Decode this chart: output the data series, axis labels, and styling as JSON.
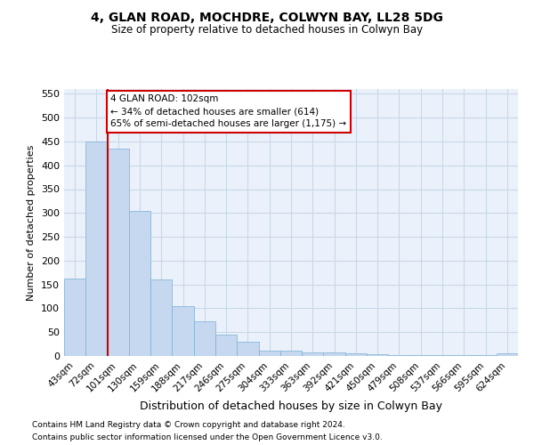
{
  "title": "4, GLAN ROAD, MOCHDRE, COLWYN BAY, LL28 5DG",
  "subtitle": "Size of property relative to detached houses in Colwyn Bay",
  "xlabel": "Distribution of detached houses by size in Colwyn Bay",
  "ylabel": "Number of detached properties",
  "footnote1": "Contains HM Land Registry data © Crown copyright and database right 2024.",
  "footnote2": "Contains public sector information licensed under the Open Government Licence v3.0.",
  "categories": [
    "43sqm",
    "72sqm",
    "101sqm",
    "130sqm",
    "159sqm",
    "188sqm",
    "217sqm",
    "246sqm",
    "275sqm",
    "304sqm",
    "333sqm",
    "363sqm",
    "392sqm",
    "421sqm",
    "450sqm",
    "479sqm",
    "508sqm",
    "537sqm",
    "566sqm",
    "595sqm",
    "624sqm"
  ],
  "values": [
    162,
    450,
    435,
    305,
    160,
    105,
    72,
    44,
    30,
    12,
    12,
    7,
    7,
    5,
    3,
    2,
    2,
    1,
    1,
    2,
    5
  ],
  "bar_color": "#c5d8f0",
  "bar_edge_color": "#7bafd4",
  "grid_color": "#c8d8e8",
  "background_color": "#eaf1fa",
  "red_line_color": "#cc0000",
  "annotation_text1": "4 GLAN ROAD: 102sqm",
  "annotation_text2": "← 34% of detached houses are smaller (614)",
  "annotation_text3": "65% of semi-detached houses are larger (1,175) →",
  "annotation_box_color": "#ffffff",
  "annotation_box_edge": "#cc0000",
  "ylim": [
    0,
    560
  ],
  "yticks": [
    0,
    50,
    100,
    150,
    200,
    250,
    300,
    350,
    400,
    450,
    500,
    550
  ],
  "property_line_x": 1.5
}
